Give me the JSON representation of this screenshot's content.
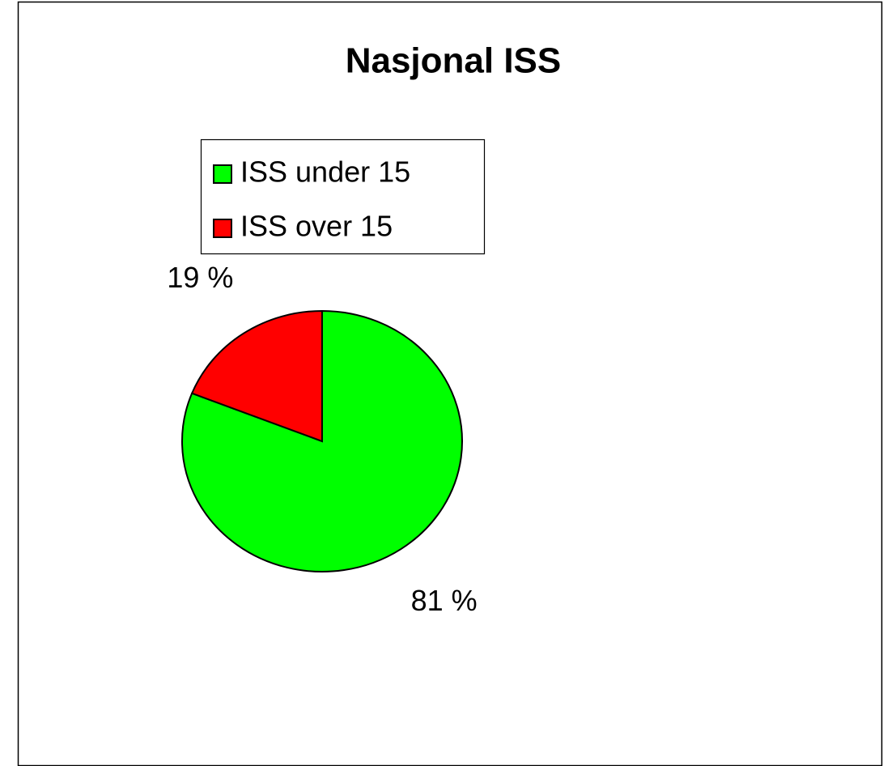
{
  "chart_data": {
    "type": "pie",
    "title": "Nasjonal ISS",
    "categories": [
      "ISS under 15",
      "ISS over 15"
    ],
    "values": [
      81,
      19
    ],
    "value_labels": [
      "81 %",
      "19 %"
    ],
    "colors": [
      "#00ff00",
      "#ff0000"
    ],
    "legend": "top-left"
  }
}
